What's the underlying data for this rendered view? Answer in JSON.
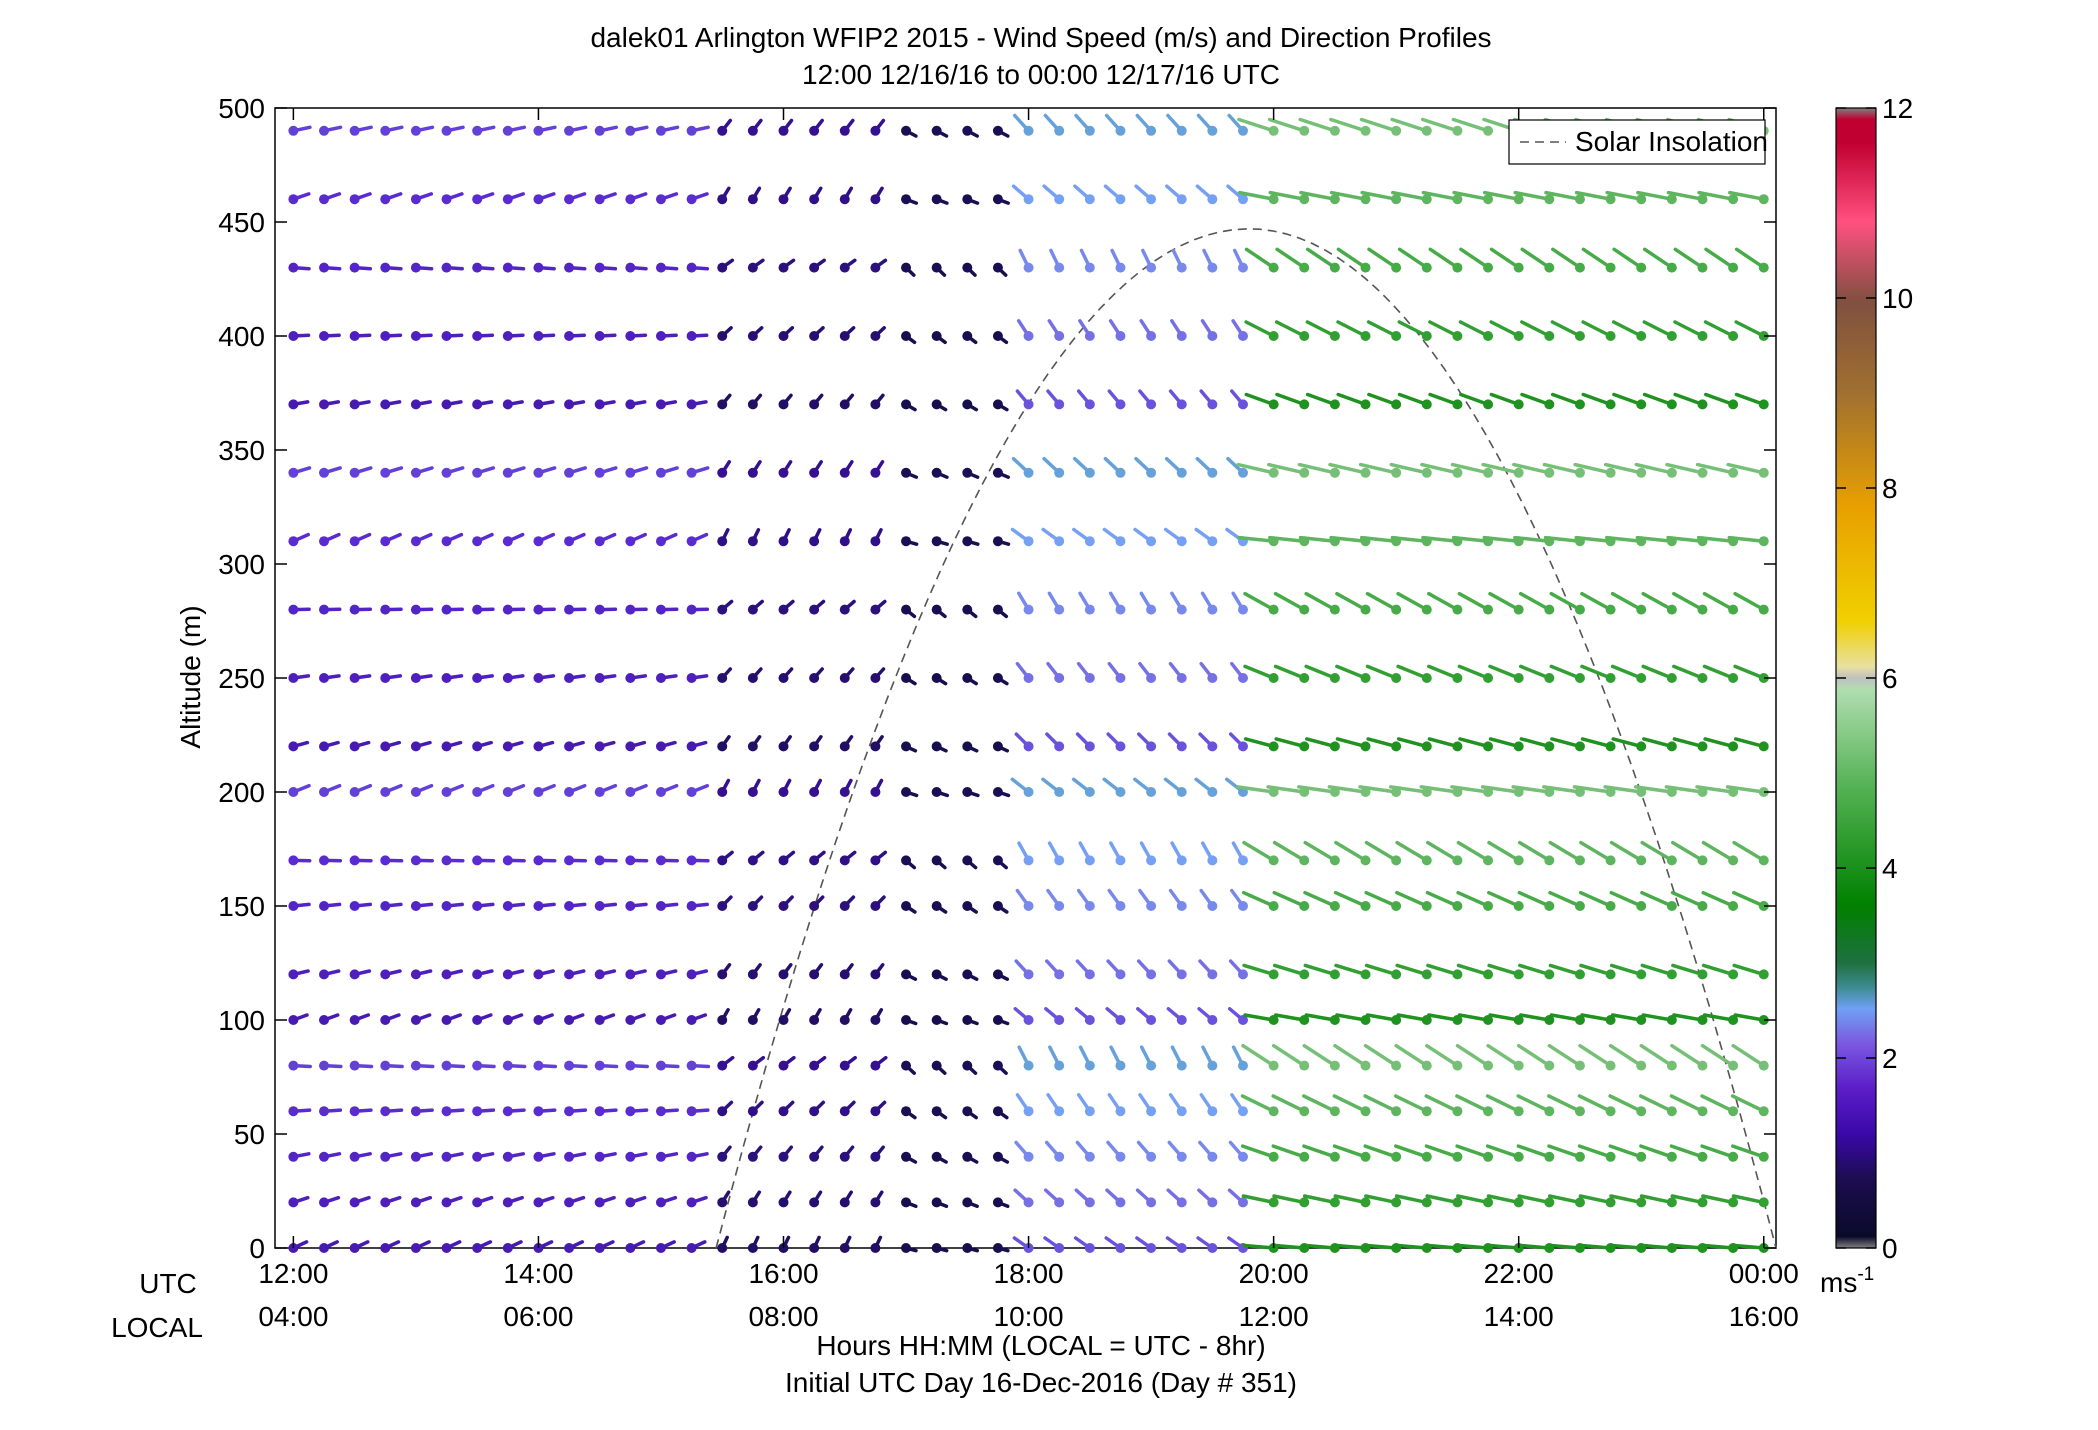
{
  "chart_data": {
    "type": "wind-barb-profile",
    "title_line1": "dalek01 Arlington WFIP2 2015 - Wind Speed (m/s) and Direction Profiles",
    "title_line2": "12:00 12/16/16 to 00:00 12/17/16  UTC",
    "ylabel": "Altitude (m)",
    "ylim": [
      0,
      500
    ],
    "y_ticks": [
      0,
      50,
      100,
      150,
      200,
      250,
      300,
      350,
      400,
      450,
      500
    ],
    "xlim_hours": [
      11.85,
      24.1
    ],
    "x_ticks_utc": [
      "12:00",
      "14:00",
      "16:00",
      "18:00",
      "20:00",
      "22:00",
      "00:00"
    ],
    "x_ticks_local": [
      "04:00",
      "06:00",
      "08:00",
      "10:00",
      "12:00",
      "14:00",
      "16:00"
    ],
    "x_tick_hours": [
      12,
      14,
      16,
      18,
      20,
      22,
      24
    ],
    "utc_label": "UTC",
    "local_label": "LOCAL",
    "xlabel_line1": "Hours HH:MM  (LOCAL = UTC - 8hr)",
    "xlabel_line2": "Initial UTC Day 16-Dec-2016 (Day # 351)",
    "legend": {
      "label": "Solar Insolation",
      "placement": "top-right",
      "style": "dashed"
    },
    "colorbar": {
      "range": [
        0,
        12
      ],
      "ticks": [
        0,
        2,
        4,
        6,
        8,
        10,
        12
      ],
      "unit": "ms",
      "unit_exp": "-1"
    },
    "solar_insolation": {
      "rise_hour": 15.45,
      "set_hour": 24.1,
      "peak_hour": 19.8,
      "peak_altitude": 447
    },
    "altitudes": [
      0,
      20,
      40,
      60,
      80,
      100,
      120,
      150,
      170,
      200,
      220,
      250,
      280,
      310,
      340,
      370,
      400,
      430,
      460,
      490
    ],
    "time_step_hours": 0.25,
    "regimes": [
      {
        "start_hour": 12.0,
        "end_hour": 15.4,
        "speed_ms": 1.4,
        "direction_deg": 80
      },
      {
        "start_hour": 15.4,
        "end_hour": 17.0,
        "speed_ms": 0.8,
        "direction_deg": 40
      },
      {
        "start_hour": 17.0,
        "end_hour": 18.0,
        "speed_ms": 0.5,
        "direction_deg": 120
      },
      {
        "start_hour": 18.0,
        "end_hour": 20.0,
        "speed_ms": 2.0,
        "direction_deg": 320
      },
      {
        "start_hour": 20.0,
        "end_hour": 24.0,
        "speed_ms": 4.5,
        "direction_deg": 290
      }
    ]
  }
}
